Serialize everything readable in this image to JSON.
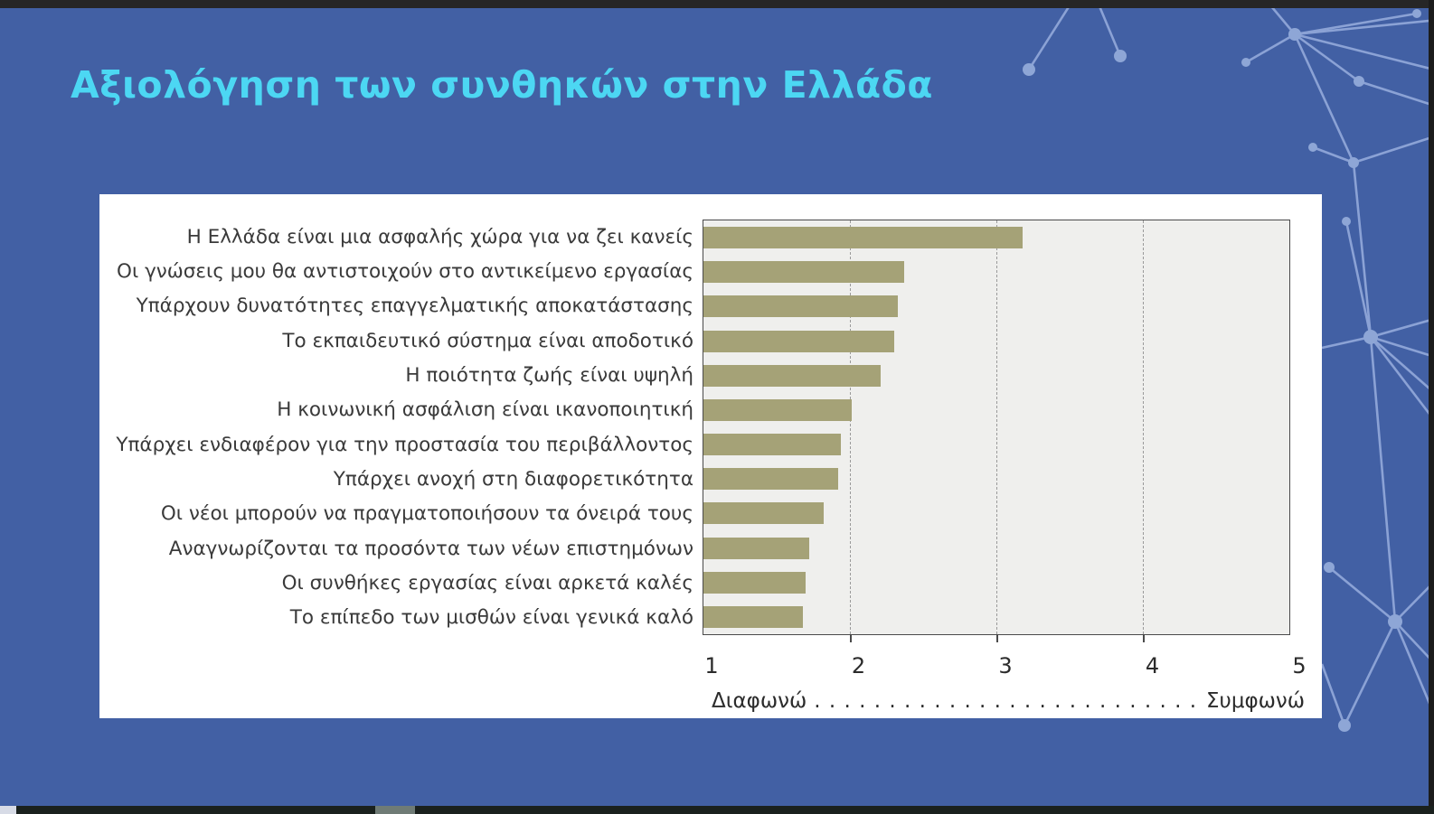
{
  "slide": {
    "title": "Αξιολόγηση των συνθηκών στην Ελλάδα",
    "background_color": "#4260a4",
    "title_color": "#4cd7f3"
  },
  "chart_data": {
    "type": "bar",
    "orientation": "horizontal",
    "title": "",
    "categories": [
      "Η Ελλάδα είναι μια ασφαλής χώρα για να ζει κανείς",
      "Οι γνώσεις μου θα αντιστοιχούν στο αντικείμενο εργασίας",
      "Υπάρχουν δυνατότητες επαγγελματικής αποκατάστασης",
      "Το εκπαιδευτικό σύστημα είναι αποδοτικό",
      "Η ποιότητα ζωής είναι υψηλή",
      "Η κοινωνική ασφάλιση είναι ικανοποιητική",
      "Υπάρχει ενδιαφέρον για την προστασία του περιβάλλοντος",
      "Υπάρχει ανοχή στη διαφορετικότητα",
      "Οι νέοι μπορούν να πραγματοποιήσουν τα όνειρά τους",
      "Αναγνωρίζονται τα προσόντα των νέων επιστημόνων",
      "Οι συνθήκες εργασίας είναι αρκετά καλές",
      "Το επίπεδο των μισθών είναι γενικά καλό"
    ],
    "values": [
      3.18,
      2.37,
      2.33,
      2.3,
      2.21,
      2.01,
      1.94,
      1.92,
      1.82,
      1.72,
      1.7,
      1.68
    ],
    "xlim": [
      1,
      5
    ],
    "x_ticks": [
      "1",
      "2",
      "3",
      "4",
      "5"
    ],
    "gridlines_at": [
      2,
      3,
      4
    ],
    "grid": true,
    "bar_color": "#a5a277",
    "plot_background": "#efefed",
    "caption_left": "Διαφωνώ",
    "caption_dots": ". . . . . . . . . . . . . . . . . . . . . . . . . . . . . . . . . .",
    "caption_right": "Συμφωνώ"
  }
}
